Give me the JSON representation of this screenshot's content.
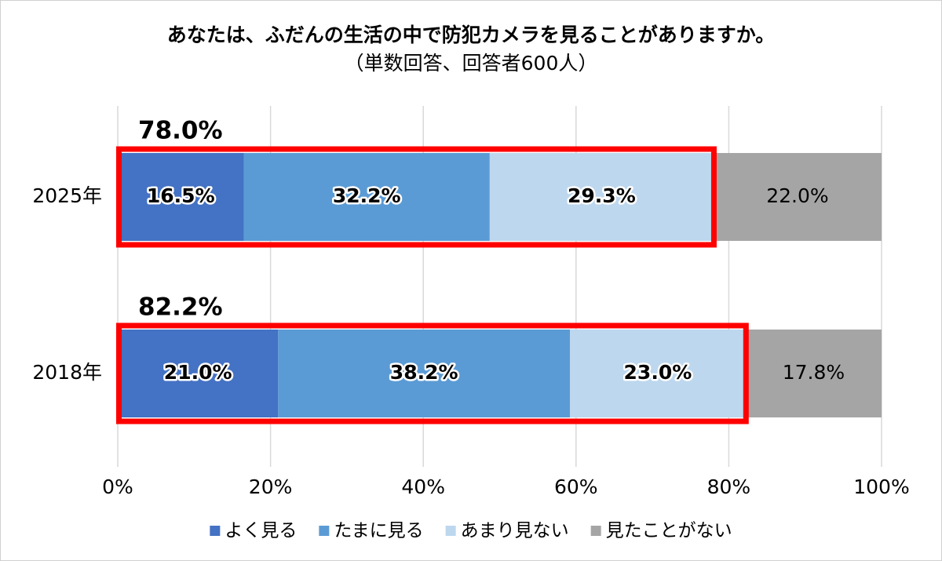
{
  "chart_data": {
    "type": "stacked-barh",
    "title": "あなたは、ふだんの生活の中で防犯カメラを見ることがありますか。",
    "subtitle": "（単数回答、回答者600人）",
    "categories": [
      "2025年",
      "2018年"
    ],
    "series": [
      {
        "name": "よく見る",
        "color": "#4472c4",
        "values": [
          16.5,
          21.0
        ],
        "value_labels": [
          "16.5%",
          "21.0%"
        ]
      },
      {
        "name": "たまに見る",
        "color": "#5b9bd5",
        "values": [
          32.2,
          38.2
        ],
        "value_labels": [
          "32.2%",
          "38.2%"
        ]
      },
      {
        "name": "あまり見ない",
        "color": "#bdd7ee",
        "values": [
          29.3,
          23.0
        ],
        "value_labels": [
          "29.3%",
          "23.0%"
        ]
      },
      {
        "name": "見たことがない",
        "color": "#a5a5a5",
        "values": [
          22.0,
          17.8
        ],
        "value_labels": [
          "22.0%",
          "17.8%"
        ]
      }
    ],
    "annotations": [
      {
        "text": "78.0%",
        "value": 78.0,
        "color": "#ff0000"
      },
      {
        "text": "82.2%",
        "value": 82.2,
        "color": "#ff0000"
      }
    ],
    "xlim": [
      0,
      100
    ],
    "xticks": [
      {
        "value": 0,
        "label": "0%"
      },
      {
        "value": 20,
        "label": "20%"
      },
      {
        "value": 40,
        "label": "40%"
      },
      {
        "value": 60,
        "label": "60%"
      },
      {
        "value": 80,
        "label": "80%"
      },
      {
        "value": 100,
        "label": "100%"
      }
    ],
    "grid": true,
    "legend": "bottom"
  }
}
